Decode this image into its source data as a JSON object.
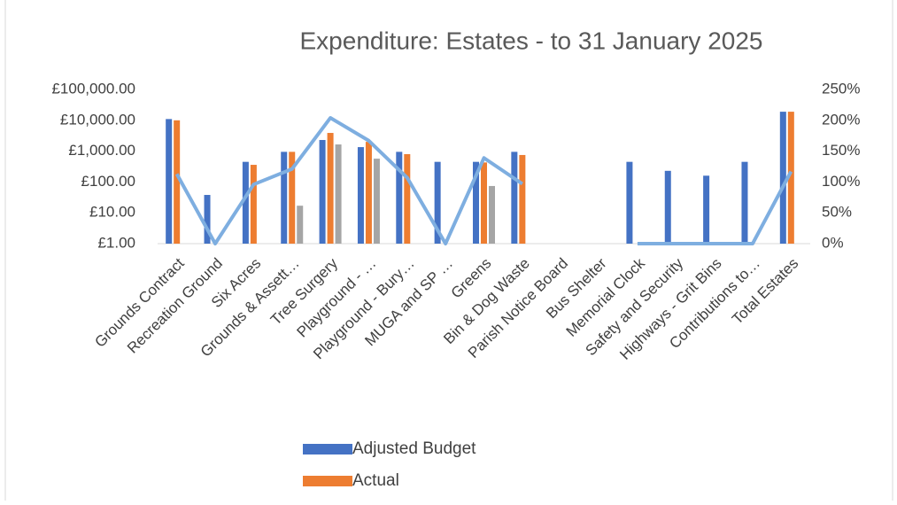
{
  "chart_data": {
    "type": "bar",
    "title": "Expenditure: Estates - to 31 January 2025",
    "categories": [
      "Grounds Contract",
      "Recreation Ground",
      "Six Acres",
      "Grounds  & Assett…",
      "Tree Surgery",
      "Playground - …",
      "Playground - Bury…",
      "MUGA and SP …",
      "Greens",
      "Bin & Dog Waste",
      "Parish Notice Board",
      "Bus Shelter",
      "Memorial Clock",
      "Safety and Security",
      "Highways - Grit Bins",
      "Contributions to…",
      "Total Estates"
    ],
    "series": [
      {
        "name": "Adjusted Budget",
        "color": "#4472c4",
        "values": [
          11000,
          38,
          450,
          950,
          2300,
          1350,
          950,
          450,
          450,
          950,
          null,
          null,
          450,
          230,
          160,
          450,
          19000
        ]
      },
      {
        "name": "Actual",
        "color": "#ed7d31",
        "values": [
          10000,
          null,
          360,
          950,
          3900,
          2000,
          800,
          null,
          430,
          750,
          null,
          null,
          null,
          null,
          null,
          null,
          19000
        ]
      },
      {
        "color": "#a5a5a5",
        "values": [
          null,
          null,
          null,
          17,
          1650,
          570,
          null,
          null,
          74,
          null,
          null,
          null,
          null,
          null,
          null,
          null,
          null
        ]
      },
      {
        "type": "line",
        "axis": "y2",
        "color": "#7eaee0",
        "values": [
          113,
          0,
          96,
          121,
          204,
          167,
          107,
          0,
          139,
          97,
          null,
          null,
          0,
          0,
          0,
          0,
          117
        ]
      }
    ],
    "log_scale": true,
    "ylim": [
      1,
      100000
    ],
    "yticks": [
      {
        "value": 1,
        "label": "£1.00"
      },
      {
        "value": 10,
        "label": "£10.00"
      },
      {
        "value": 100,
        "label": "£100.00"
      },
      {
        "value": 1000,
        "label": "£1,000.00"
      },
      {
        "value": 10000,
        "label": "£10,000.00"
      },
      {
        "value": 100000,
        "label": "£100,000.00"
      }
    ],
    "y2lim": [
      0,
      250
    ],
    "y2ticks": [
      {
        "value": 0,
        "label": "0%"
      },
      {
        "value": 50,
        "label": "50%"
      },
      {
        "value": 100,
        "label": "100%"
      },
      {
        "value": 150,
        "label": "150%"
      },
      {
        "value": 200,
        "label": "200%"
      },
      {
        "value": 250,
        "label": "250%"
      }
    ],
    "legend": "bottom"
  }
}
